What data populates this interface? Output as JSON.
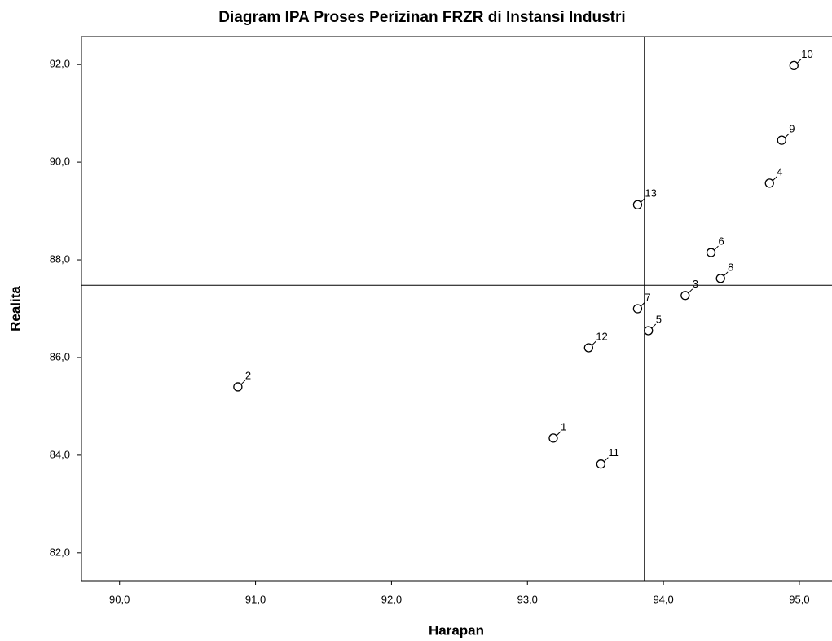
{
  "chart_data": {
    "type": "scatter",
    "title": "Diagram IPA Proses Perizinan FRZR di Instansi Industri",
    "x_label": "Harapan",
    "y_label": "Realita",
    "labels": [
      "1",
      "2",
      "3",
      "4",
      "5",
      "6",
      "7",
      "8",
      "9",
      "10",
      "11",
      "12",
      "13"
    ],
    "x": [
      93.19,
      90.87,
      94.16,
      94.78,
      93.89,
      94.35,
      93.81,
      94.42,
      94.87,
      94.96,
      93.54,
      93.45,
      93.81
    ],
    "y": [
      84.35,
      85.4,
      87.27,
      89.57,
      86.55,
      88.15,
      87.0,
      87.62,
      90.45,
      91.98,
      83.82,
      86.2,
      89.13
    ],
    "color": "#000000",
    "xlim": [
      89.72,
      95.24
    ],
    "ylim": [
      81.43,
      92.57
    ],
    "xticks": [
      {
        "value": 90,
        "label": "90,0"
      },
      {
        "value": 91,
        "label": "91,0"
      },
      {
        "value": 92,
        "label": "92,0"
      },
      {
        "value": 93,
        "label": "93,0"
      },
      {
        "value": 94,
        "label": "94,0"
      },
      {
        "value": 95,
        "label": "95,0"
      }
    ],
    "yticks": [
      {
        "value": 82,
        "label": "82,0"
      },
      {
        "value": 84,
        "label": "84,0"
      },
      {
        "value": 86,
        "label": "86,0"
      },
      {
        "value": 88,
        "label": "88,0"
      },
      {
        "value": 90,
        "label": "90,0"
      },
      {
        "value": 92,
        "label": "92,0"
      }
    ],
    "reference_lines": {
      "x": 93.86,
      "y": 87.48
    }
  }
}
